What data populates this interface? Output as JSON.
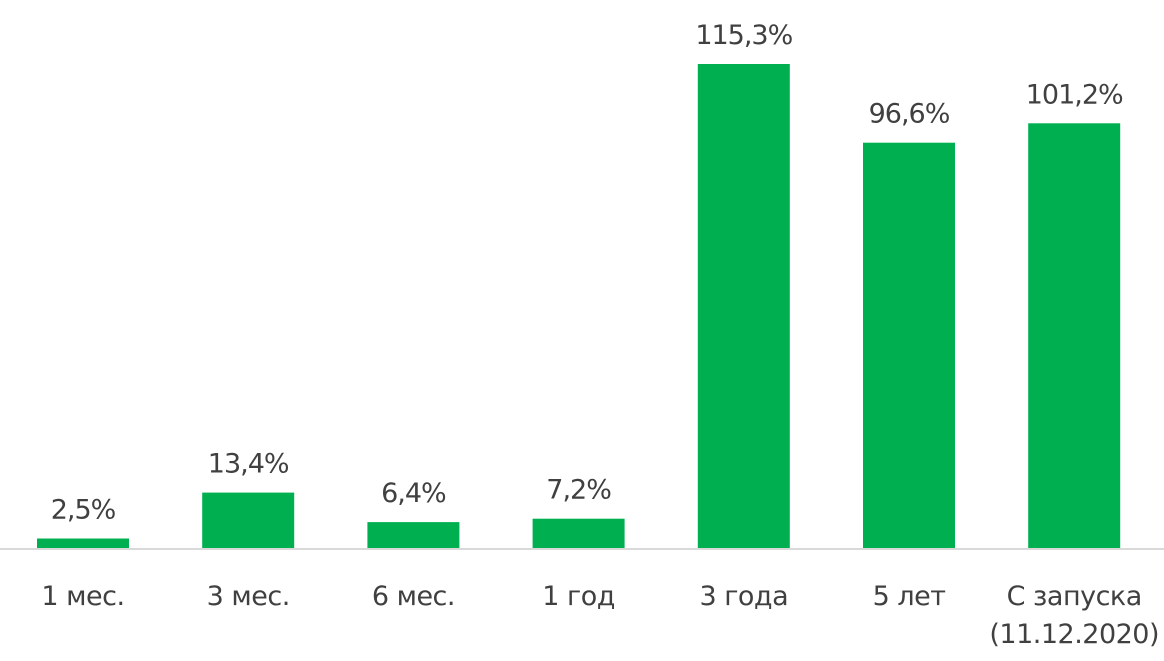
{
  "chart_data": {
    "type": "bar",
    "categories": [
      [
        "1 мес."
      ],
      [
        "3 мес."
      ],
      [
        "6 мес."
      ],
      [
        "1 год"
      ],
      [
        "3 года"
      ],
      [
        "5 лет"
      ],
      [
        "С запуска",
        "(11.12.2020)"
      ]
    ],
    "values": [
      2.5,
      13.4,
      6.4,
      7.2,
      115.3,
      96.6,
      101.2
    ],
    "value_labels": [
      "2,5%",
      "13,4%",
      "6,4%",
      "7,2%",
      "115,3%",
      "96,6%",
      "101,2%"
    ],
    "title": "",
    "xlabel": "",
    "ylabel": "",
    "ylim": [
      0,
      115.3
    ],
    "grid": false,
    "legend": "none",
    "colors": {
      "bar": "#00b050",
      "axis": "#d9d9d9",
      "text": "#404040"
    }
  }
}
